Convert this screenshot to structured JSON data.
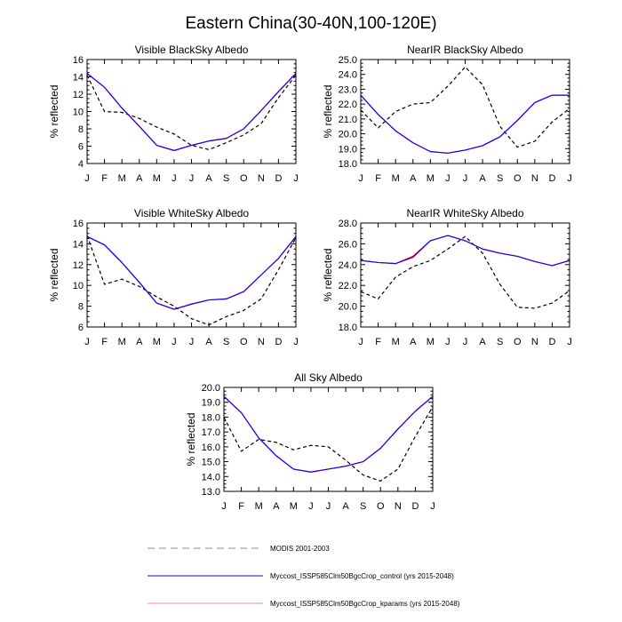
{
  "title": "Eastern China(30-40N,100-120E)",
  "legend": [
    {
      "label": "MODIS 2001-2003",
      "color": "#000000",
      "dash": "8,5",
      "width": 1,
      "opacity": 0.45,
      "line_length": 130
    },
    {
      "label": "Myccost_ISSP585Clm50BgcCrop_control (yrs 2015-2048)",
      "color": "#1a00ff",
      "dash": "",
      "width": 1,
      "opacity": 1,
      "line_length": 130
    },
    {
      "label": "Myccost_ISSP585Clm50BgcCrop_kparams (yrs 2015-2048)",
      "color": "#ff0000",
      "dash": "",
      "width": 1,
      "opacity": 0.45,
      "line_length": 130
    }
  ],
  "chart_data": [
    {
      "type": "line",
      "title": "Visible BlackSky Albedo",
      "ylabel": "% reflected",
      "x": [
        "J",
        "F",
        "M",
        "A",
        "M",
        "J",
        "J",
        "A",
        "S",
        "O",
        "N",
        "D",
        "J"
      ],
      "ylim": [
        4,
        16
      ],
      "yticks": [
        4,
        6,
        8,
        10,
        12,
        14,
        16
      ],
      "ytick_labels": [
        "4",
        "6",
        "8",
        "10",
        "12",
        "14",
        "16"
      ],
      "series": [
        {
          "name": "MODIS 2001-2003",
          "color": "#000000",
          "dash": "4,3",
          "values": [
            14.2,
            10.0,
            9.9,
            9.2,
            8.2,
            7.4,
            6.1,
            5.6,
            6.4,
            7.3,
            8.6,
            11.6,
            14.2
          ]
        },
        {
          "name": "Myccost_ISSP585Clm50BgcCrop_kparams (yrs 2015-2048)",
          "color": "#ff0000",
          "dash": "",
          "values": [
            14.4,
            12.8,
            10.4,
            8.3,
            6.1,
            5.5,
            6.1,
            6.6,
            6.9,
            8.0,
            10.1,
            12.3,
            14.4
          ]
        },
        {
          "name": "Myccost_ISSP585Clm50BgcCrop_control (yrs 2015-2048)",
          "color": "#1a00ff",
          "dash": "",
          "values": [
            14.4,
            12.8,
            10.4,
            8.3,
            6.1,
            5.5,
            6.1,
            6.6,
            6.9,
            8.0,
            10.1,
            12.3,
            14.4
          ]
        }
      ]
    },
    {
      "type": "line",
      "title": "NearIR BlackSky Albedo",
      "ylabel": "% reflected",
      "x": [
        "J",
        "F",
        "M",
        "A",
        "M",
        "J",
        "J",
        "A",
        "S",
        "O",
        "N",
        "D",
        "J"
      ],
      "ylim": [
        18,
        25
      ],
      "yticks": [
        18,
        19,
        20,
        21,
        22,
        23,
        24,
        25
      ],
      "ytick_labels": [
        "18.0",
        "19.0",
        "20.0",
        "21.0",
        "22.0",
        "23.0",
        "24.0",
        "25.0"
      ],
      "series": [
        {
          "name": "MODIS 2001-2003",
          "color": "#000000",
          "dash": "4,3",
          "values": [
            21.6,
            20.4,
            21.5,
            22.0,
            22.1,
            23.2,
            24.5,
            23.3,
            20.5,
            19.1,
            19.5,
            20.8,
            21.7
          ]
        },
        {
          "name": "Myccost_ISSP585Clm50BgcCrop_kparams (yrs 2015-2048)",
          "color": "#ff0000",
          "dash": "",
          "values": [
            22.6,
            21.3,
            20.2,
            19.4,
            18.8,
            18.7,
            18.9,
            19.2,
            19.8,
            20.9,
            22.1,
            22.6,
            22.6
          ]
        },
        {
          "name": "Myccost_ISSP585Clm50BgcCrop_control (yrs 2015-2048)",
          "color": "#1a00ff",
          "dash": "",
          "values": [
            22.6,
            21.3,
            20.2,
            19.4,
            18.8,
            18.7,
            18.9,
            19.2,
            19.8,
            20.9,
            22.1,
            22.6,
            22.6
          ]
        }
      ]
    },
    {
      "type": "line",
      "title": "Visible WhiteSky Albedo",
      "ylabel": "% reflected",
      "x": [
        "J",
        "F",
        "M",
        "A",
        "M",
        "J",
        "J",
        "A",
        "S",
        "O",
        "N",
        "D",
        "J"
      ],
      "ylim": [
        6,
        16
      ],
      "yticks": [
        6,
        8,
        10,
        12,
        14,
        16
      ],
      "ytick_labels": [
        "6",
        "8",
        "10",
        "12",
        "14",
        "16"
      ],
      "series": [
        {
          "name": "MODIS 2001-2003",
          "color": "#000000",
          "dash": "4,3",
          "values": [
            14.8,
            10.1,
            10.6,
            9.9,
            8.9,
            8.0,
            6.8,
            6.2,
            7.0,
            7.6,
            8.7,
            11.5,
            14.6
          ]
        },
        {
          "name": "Myccost_ISSP585Clm50BgcCrop_kparams (yrs 2015-2048)",
          "color": "#ff0000",
          "dash": "",
          "values": [
            14.7,
            13.9,
            12.2,
            10.3,
            8.3,
            7.7,
            8.2,
            8.6,
            8.7,
            9.4,
            11.0,
            12.6,
            14.7
          ]
        },
        {
          "name": "Myccost_ISSP585Clm50BgcCrop_control (yrs 2015-2048)",
          "color": "#1a00ff",
          "dash": "",
          "values": [
            14.7,
            13.9,
            12.2,
            10.3,
            8.3,
            7.7,
            8.2,
            8.6,
            8.7,
            9.4,
            11.0,
            12.6,
            14.7
          ]
        }
      ]
    },
    {
      "type": "line",
      "title": "NearIR WhiteSky Albedo",
      "ylabel": "% reflected",
      "x": [
        "J",
        "F",
        "M",
        "A",
        "M",
        "J",
        "J",
        "A",
        "S",
        "O",
        "N",
        "D",
        "J"
      ],
      "ylim": [
        18,
        28
      ],
      "yticks": [
        18,
        20,
        22,
        24,
        26,
        28
      ],
      "ytick_labels": [
        "18.0",
        "20.0",
        "22.0",
        "24.0",
        "26.0",
        "28.0"
      ],
      "series": [
        {
          "name": "MODIS 2001-2003",
          "color": "#000000",
          "dash": "4,3",
          "values": [
            21.4,
            20.7,
            22.8,
            23.8,
            24.4,
            25.5,
            26.7,
            25.1,
            22.1,
            19.9,
            19.8,
            20.3,
            21.5
          ]
        },
        {
          "name": "Myccost_ISSP585Clm50BgcCrop_kparams (yrs 2015-2048)",
          "color": "#ff0000",
          "dash": "",
          "values": [
            24.4,
            24.2,
            24.1,
            24.8,
            26.3,
            26.8,
            26.3,
            25.5,
            25.1,
            24.8,
            24.3,
            23.9,
            24.4
          ]
        },
        {
          "name": "Myccost_ISSP585Clm50BgcCrop_control (yrs 2015-2048)",
          "color": "#1a00ff",
          "dash": "",
          "values": [
            24.4,
            24.2,
            24.1,
            24.7,
            26.3,
            26.8,
            26.3,
            25.5,
            25.1,
            24.8,
            24.3,
            23.9,
            24.4
          ]
        }
      ]
    },
    {
      "type": "line",
      "title": "All Sky Albedo",
      "ylabel": "% reflected",
      "x": [
        "J",
        "F",
        "M",
        "A",
        "M",
        "J",
        "J",
        "A",
        "S",
        "O",
        "N",
        "D",
        "J"
      ],
      "ylim": [
        13,
        20
      ],
      "yticks": [
        13,
        14,
        15,
        16,
        17,
        18,
        19,
        20
      ],
      "ytick_labels": [
        "13.0",
        "14.0",
        "15.0",
        "16.0",
        "17.0",
        "18.0",
        "19.0",
        "20.0"
      ],
      "series": [
        {
          "name": "MODIS 2001-2003",
          "color": "#000000",
          "dash": "4,3",
          "values": [
            18.0,
            15.7,
            16.5,
            16.3,
            15.8,
            16.1,
            16.0,
            15.1,
            14.1,
            13.7,
            14.5,
            16.7,
            18.7
          ]
        },
        {
          "name": "Myccost_ISSP585Clm50BgcCrop_kparams (yrs 2015-2048)",
          "color": "#ff0000",
          "dash": "",
          "values": [
            19.4,
            18.3,
            16.6,
            15.4,
            14.5,
            14.3,
            14.5,
            14.7,
            15.0,
            15.9,
            17.2,
            18.4,
            19.4
          ]
        },
        {
          "name": "Myccost_ISSP585Clm50BgcCrop_control (yrs 2015-2048)",
          "color": "#1a00ff",
          "dash": "",
          "values": [
            19.4,
            18.3,
            16.6,
            15.4,
            14.5,
            14.3,
            14.5,
            14.7,
            15.0,
            15.9,
            17.2,
            18.4,
            19.4
          ]
        }
      ]
    }
  ]
}
